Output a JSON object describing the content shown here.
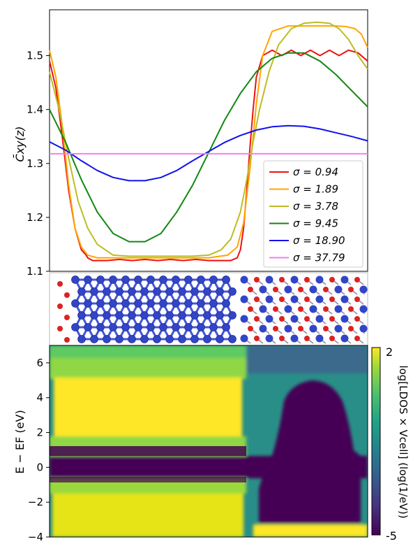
{
  "chart_data": [
    {
      "type": "line",
      "ylabel": "C̄xy(z)",
      "xlim": [
        0,
        1
      ],
      "ylim": [
        1.1,
        1.585
      ],
      "yticks": [
        "1.1",
        "1.2",
        "1.3",
        "1.4",
        "1.5"
      ],
      "legend_position": "lower-right",
      "grid": false,
      "series": [
        {
          "name": "σ = 0.94",
          "color": "#ee1111",
          "x": [
            0,
            0.02,
            0.04,
            0.06,
            0.08,
            0.1,
            0.115,
            0.12,
            0.135,
            0.15,
            0.18,
            0.22,
            0.26,
            0.3,
            0.34,
            0.38,
            0.42,
            0.46,
            0.5,
            0.54,
            0.57,
            0.59,
            0.6,
            0.61,
            0.62,
            0.63,
            0.64,
            0.65,
            0.67,
            0.7,
            0.73,
            0.76,
            0.79,
            0.82,
            0.85,
            0.88,
            0.91,
            0.94,
            0.97,
            1.0
          ],
          "y": [
            1.49,
            1.44,
            1.35,
            1.25,
            1.18,
            1.14,
            1.13,
            1.125,
            1.12,
            1.12,
            1.12,
            1.122,
            1.12,
            1.122,
            1.12,
            1.122,
            1.12,
            1.122,
            1.12,
            1.12,
            1.12,
            1.125,
            1.14,
            1.18,
            1.25,
            1.33,
            1.4,
            1.46,
            1.5,
            1.51,
            1.5,
            1.51,
            1.5,
            1.51,
            1.5,
            1.51,
            1.5,
            1.51,
            1.505,
            1.49
          ]
        },
        {
          "name": "σ = 1.89",
          "color": "#ffa500",
          "x": [
            0,
            0.02,
            0.04,
            0.06,
            0.08,
            0.1,
            0.12,
            0.15,
            0.2,
            0.3,
            0.4,
            0.5,
            0.56,
            0.59,
            0.61,
            0.63,
            0.65,
            0.67,
            0.7,
            0.75,
            0.8,
            0.85,
            0.9,
            0.93,
            0.96,
            0.98,
            1.0
          ],
          "y": [
            1.51,
            1.46,
            1.37,
            1.26,
            1.18,
            1.145,
            1.13,
            1.125,
            1.125,
            1.125,
            1.125,
            1.125,
            1.13,
            1.145,
            1.19,
            1.29,
            1.41,
            1.5,
            1.545,
            1.555,
            1.555,
            1.555,
            1.555,
            1.554,
            1.55,
            1.54,
            1.515
          ]
        },
        {
          "name": "σ = 3.78",
          "color": "#bcbd22",
          "x": [
            0,
            0.03,
            0.06,
            0.09,
            0.12,
            0.15,
            0.2,
            0.25,
            0.3,
            0.35,
            0.4,
            0.45,
            0.5,
            0.54,
            0.57,
            0.6,
            0.62,
            0.64,
            0.66,
            0.69,
            0.72,
            0.76,
            0.8,
            0.84,
            0.88,
            0.91,
            0.94,
            0.97,
            1.0
          ],
          "y": [
            1.47,
            1.4,
            1.31,
            1.23,
            1.18,
            1.15,
            1.13,
            1.128,
            1.128,
            1.128,
            1.128,
            1.128,
            1.13,
            1.14,
            1.16,
            1.21,
            1.27,
            1.34,
            1.4,
            1.47,
            1.52,
            1.55,
            1.56,
            1.562,
            1.56,
            1.55,
            1.53,
            1.5,
            1.475
          ]
        },
        {
          "name": "σ = 9.45",
          "color": "#118811",
          "x": [
            0,
            0.05,
            0.1,
            0.15,
            0.2,
            0.25,
            0.3,
            0.35,
            0.4,
            0.45,
            0.5,
            0.55,
            0.6,
            0.65,
            0.7,
            0.75,
            0.8,
            0.85,
            0.9,
            0.95,
            1.0
          ],
          "y": [
            1.4,
            1.34,
            1.27,
            1.21,
            1.17,
            1.155,
            1.155,
            1.17,
            1.21,
            1.26,
            1.32,
            1.38,
            1.43,
            1.47,
            1.495,
            1.505,
            1.505,
            1.49,
            1.465,
            1.435,
            1.405
          ]
        },
        {
          "name": "σ = 18.90",
          "color": "#1111ee",
          "x": [
            0,
            0.05,
            0.1,
            0.15,
            0.2,
            0.25,
            0.3,
            0.35,
            0.4,
            0.45,
            0.5,
            0.55,
            0.6,
            0.65,
            0.7,
            0.75,
            0.8,
            0.85,
            0.9,
            0.95,
            1.0
          ],
          "y": [
            1.34,
            1.325,
            1.305,
            1.287,
            1.274,
            1.268,
            1.268,
            1.274,
            1.287,
            1.305,
            1.322,
            1.339,
            1.352,
            1.362,
            1.368,
            1.37,
            1.369,
            1.364,
            1.357,
            1.35,
            1.342
          ]
        },
        {
          "name": "σ = 37.79",
          "color": "#ee82ee",
          "x": [
            0,
            0.25,
            0.5,
            0.75,
            1.0
          ],
          "y": [
            1.318,
            1.318,
            1.318,
            1.318,
            1.318
          ]
        }
      ]
    },
    {
      "type": "heatmap",
      "ylabel": "E − EF (eV)",
      "ylim": [
        -4,
        7
      ],
      "yticks": [
        "−4",
        "−2",
        "0",
        "2",
        "4",
        "6"
      ],
      "colorbar": {
        "label": "log[LDOS × Vcell] (log(1/eV))",
        "min_label": "-5",
        "max_label": "2",
        "colormap": "viridis"
      }
    }
  ]
}
